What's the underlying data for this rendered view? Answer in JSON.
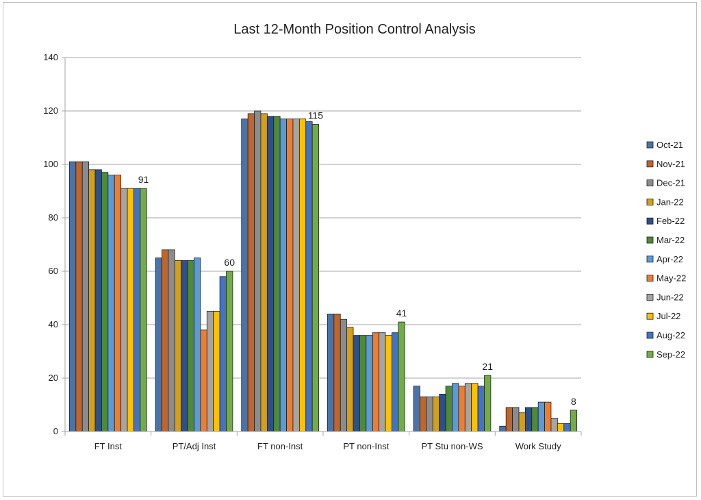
{
  "chart_data": {
    "type": "bar",
    "title": "Last 12-Month Position Control Analysis",
    "xlabel": "",
    "ylabel": "",
    "ylim": [
      0,
      140
    ],
    "yticks": [
      0,
      20,
      40,
      60,
      80,
      100,
      120,
      140
    ],
    "grid": true,
    "legend_position": "right",
    "categories": [
      "FT Inst",
      "PT/Adj Inst",
      "FT non-Inst",
      "PT non-Inst",
      "PT Stu non-WS",
      "Work Study"
    ],
    "series": [
      {
        "name": "Oct-21",
        "color": "#4a74a8",
        "values": [
          101,
          65,
          117,
          44,
          17,
          2
        ]
      },
      {
        "name": "Nov-21",
        "color": "#c0652c",
        "values": [
          101,
          68,
          119,
          44,
          13,
          9
        ]
      },
      {
        "name": "Dec-21",
        "color": "#8c8c8c",
        "values": [
          101,
          68,
          120,
          42,
          13,
          9
        ]
      },
      {
        "name": "Jan-22",
        "color": "#d4a017",
        "values": [
          98,
          64,
          119,
          39,
          13,
          7
        ]
      },
      {
        "name": "Feb-22",
        "color": "#2e4f8f",
        "values": [
          98,
          64,
          118,
          36,
          14,
          9
        ]
      },
      {
        "name": "Mar-22",
        "color": "#4f8a35",
        "values": [
          97,
          64,
          118,
          36,
          17,
          9
        ]
      },
      {
        "name": "Apr-22",
        "color": "#5b9bd5",
        "values": [
          96,
          65,
          117,
          36,
          18,
          11
        ]
      },
      {
        "name": "May-22",
        "color": "#ed7d31",
        "values": [
          96,
          38,
          117,
          37,
          17,
          11
        ]
      },
      {
        "name": "Jun-22",
        "color": "#a5a5a5",
        "values": [
          91,
          45,
          117,
          37,
          18,
          5
        ]
      },
      {
        "name": "Jul-22",
        "color": "#ffc000",
        "values": [
          91,
          45,
          117,
          36,
          18,
          3
        ]
      },
      {
        "name": "Aug-22",
        "color": "#4472c4",
        "values": [
          91,
          58,
          116,
          37,
          17,
          3
        ]
      },
      {
        "name": "Sep-22",
        "color": "#70ad47",
        "values": [
          91,
          60,
          115,
          41,
          21,
          8
        ]
      }
    ],
    "data_labels": [
      {
        "category": "FT Inst",
        "series": "Sep-22",
        "text": "91"
      },
      {
        "category": "PT/Adj Inst",
        "series": "Sep-22",
        "text": "60"
      },
      {
        "category": "FT non-Inst",
        "series": "Sep-22",
        "text": "115"
      },
      {
        "category": "PT non-Inst",
        "series": "Sep-22",
        "text": "41"
      },
      {
        "category": "PT Stu non-WS",
        "series": "Sep-22",
        "text": "21"
      },
      {
        "category": "Work Study",
        "series": "Sep-22",
        "text": "8"
      }
    ]
  }
}
